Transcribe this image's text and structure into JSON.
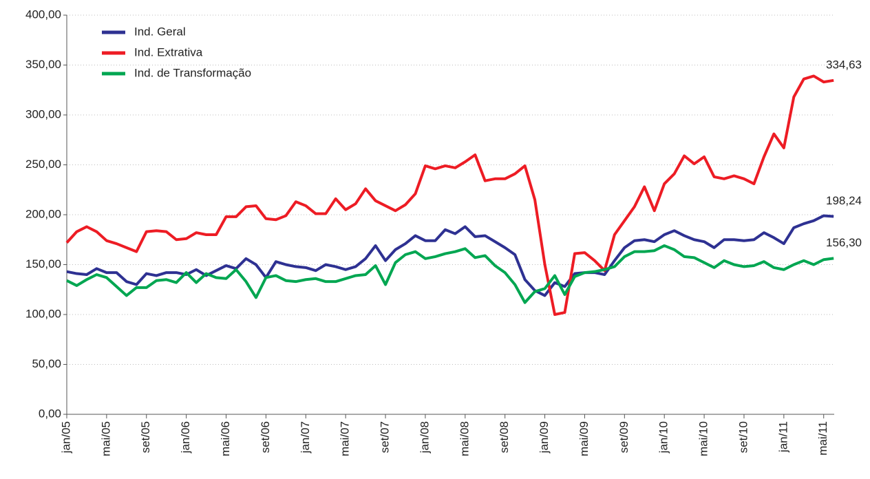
{
  "chart_data": {
    "type": "line",
    "categories": [
      "jan/05",
      null,
      null,
      null,
      "mai/05",
      null,
      null,
      null,
      "set/05",
      null,
      null,
      null,
      "jan/06",
      null,
      null,
      null,
      "mai/06",
      null,
      null,
      null,
      "set/06",
      null,
      null,
      null,
      "jan/07",
      null,
      null,
      null,
      "mai/07",
      null,
      null,
      null,
      "set/07",
      null,
      null,
      null,
      "jan/08",
      null,
      null,
      null,
      "mai/08",
      null,
      null,
      null,
      "set/08",
      null,
      null,
      null,
      "jan/09",
      null,
      null,
      null,
      "mai/09",
      null,
      null,
      null,
      "set/09",
      null,
      null,
      null,
      "jan/10",
      null,
      null,
      null,
      "mai/10",
      null,
      null,
      null,
      "set/10",
      null,
      null,
      null,
      "jan/11",
      null,
      null,
      null,
      "mai/11",
      null
    ],
    "series": [
      {
        "name": "Ind. Geral",
        "color": "#2e3192",
        "values": [
          143,
          141,
          140,
          146,
          142,
          142,
          133,
          130,
          141,
          139,
          142,
          142,
          140,
          145,
          139,
          144,
          149,
          146,
          156,
          150,
          137,
          153,
          150,
          148,
          147,
          144,
          150,
          148,
          145,
          148,
          156,
          169,
          154,
          165,
          171,
          179,
          174,
          174,
          185,
          181,
          188,
          178,
          179,
          173,
          167,
          160,
          135,
          124,
          119,
          132,
          128,
          141,
          142,
          142,
          140,
          154,
          167,
          174,
          175,
          173,
          180,
          184,
          179,
          175,
          173,
          167,
          175,
          175,
          174,
          175,
          182,
          177,
          171,
          187,
          191,
          194,
          199,
          198.24
        ],
        "value_labels": [
          null,
          null,
          null,
          null,
          null,
          null,
          null,
          null,
          null,
          null,
          null,
          null,
          null,
          null,
          null,
          null,
          null,
          null,
          null,
          null,
          null,
          null,
          null,
          null,
          null,
          null,
          null,
          null,
          null,
          null,
          null,
          null,
          null,
          null,
          null,
          null,
          null,
          null,
          null,
          null,
          null,
          null,
          null,
          null,
          null,
          null,
          null,
          null,
          null,
          null,
          null,
          null,
          null,
          null,
          null,
          null,
          null,
          null,
          null,
          null,
          null,
          null,
          null,
          null,
          null,
          null,
          null,
          null,
          null,
          null,
          null,
          null,
          null,
          null,
          null,
          null,
          null,
          "198,24"
        ]
      },
      {
        "name": "Ind. Extrativa",
        "color": "#ed1c24",
        "values": [
          172,
          183,
          188,
          183,
          174,
          171,
          167,
          163,
          183,
          184,
          183,
          175,
          176,
          182,
          180,
          180,
          198,
          198,
          208,
          209,
          196,
          195,
          199,
          213,
          209,
          201,
          201,
          216,
          205,
          211,
          226,
          214,
          209,
          204,
          210,
          221,
          249,
          246,
          249,
          247,
          253,
          260,
          234,
          236,
          236,
          241,
          249,
          215,
          150,
          100,
          102,
          161,
          162,
          154,
          144,
          180,
          194,
          208,
          228,
          204,
          231,
          241,
          259,
          251,
          258,
          238,
          236,
          239,
          236,
          231,
          258,
          281,
          267,
          318,
          336,
          339,
          333,
          334.63
        ],
        "value_labels": [
          null,
          null,
          null,
          null,
          null,
          null,
          null,
          null,
          null,
          null,
          null,
          null,
          null,
          null,
          null,
          null,
          null,
          null,
          null,
          null,
          null,
          null,
          null,
          null,
          null,
          null,
          null,
          null,
          null,
          null,
          null,
          null,
          null,
          null,
          null,
          null,
          null,
          null,
          null,
          null,
          null,
          null,
          null,
          null,
          null,
          null,
          null,
          null,
          null,
          null,
          null,
          null,
          null,
          null,
          null,
          null,
          null,
          null,
          null,
          null,
          null,
          null,
          null,
          null,
          null,
          null,
          null,
          null,
          null,
          null,
          null,
          null,
          null,
          null,
          null,
          null,
          null,
          "334,63"
        ]
      },
      {
        "name": "Ind. de Transformação",
        "color": "#00a651",
        "values": [
          134,
          129,
          135,
          140,
          137,
          128,
          119,
          127,
          127,
          134,
          135,
          132,
          142,
          132,
          141,
          137,
          136,
          145,
          133,
          117,
          137,
          139,
          134,
          133,
          135,
          136,
          133,
          133,
          136,
          139,
          140,
          149,
          130,
          152,
          160,
          163,
          156,
          158,
          161,
          163,
          166,
          157,
          159,
          149,
          142,
          130,
          112,
          123,
          126,
          139,
          120,
          138,
          142,
          143,
          145,
          148,
          158,
          163,
          163,
          164,
          169,
          165,
          158,
          157,
          152,
          147,
          154,
          150,
          148,
          149,
          153,
          147,
          145,
          150,
          154,
          150,
          155,
          156.3
        ],
        "value_labels": [
          null,
          null,
          null,
          null,
          null,
          null,
          null,
          null,
          null,
          null,
          null,
          null,
          null,
          null,
          null,
          null,
          null,
          null,
          null,
          null,
          null,
          null,
          null,
          null,
          null,
          null,
          null,
          null,
          null,
          null,
          null,
          null,
          null,
          null,
          null,
          null,
          null,
          null,
          null,
          null,
          null,
          null,
          null,
          null,
          null,
          null,
          null,
          null,
          null,
          null,
          null,
          null,
          null,
          null,
          null,
          null,
          null,
          null,
          null,
          null,
          null,
          null,
          null,
          null,
          null,
          null,
          null,
          null,
          null,
          null,
          null,
          null,
          null,
          null,
          null,
          null,
          null,
          "156,30"
        ]
      }
    ],
    "ylim": [
      0,
      400
    ],
    "yticks": [
      {
        "value": 0,
        "label": "0,00"
      },
      {
        "value": 50,
        "label": "50,00"
      },
      {
        "value": 100,
        "label": "100,00"
      },
      {
        "value": 150,
        "label": "150,00"
      },
      {
        "value": 200,
        "label": "200,00"
      },
      {
        "value": 250,
        "label": "250,00"
      },
      {
        "value": 300,
        "label": "300,00"
      },
      {
        "value": 350,
        "label": "350,00"
      },
      {
        "value": 400,
        "label": "400,00"
      }
    ],
    "grid": true,
    "legend": "top-left"
  }
}
